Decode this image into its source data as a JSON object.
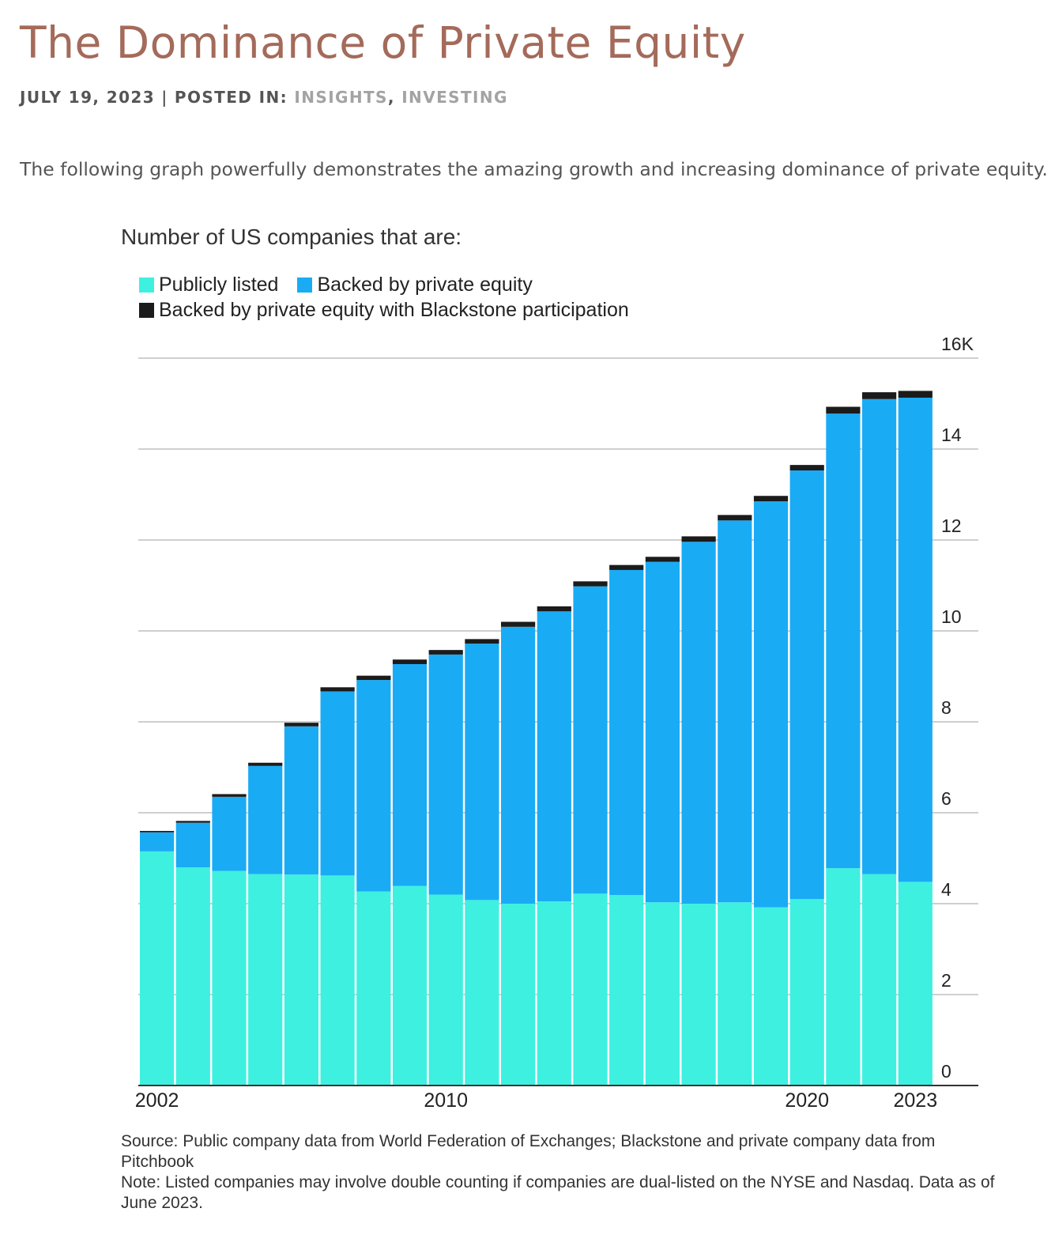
{
  "article": {
    "title": "The Dominance of Private Equity",
    "date": "JULY 19, 2023",
    "separator": "|",
    "posted_in_label": "POSTED IN:",
    "categories": [
      "INSIGHTS",
      "INVESTING"
    ],
    "category_separator": ",",
    "intro": "The following graph powerfully demonstrates the amazing growth and increasing dominance of private equity."
  },
  "colors": {
    "title": "#a46a5a",
    "public": "#3ef0e0",
    "pe": "#1aabf5",
    "blackstone": "#1b1b1b",
    "grid": "#cfcfcf"
  },
  "chart_data": {
    "type": "bar",
    "stacked": true,
    "title": "Number of US companies that are:",
    "legend": [
      "Publicly listed",
      "Backed by private equity",
      "Backed by private equity with Blackstone participation"
    ],
    "categories": [
      "2002",
      "2003",
      "2004",
      "2005",
      "2006",
      "2007",
      "2008",
      "2009",
      "2010",
      "2011",
      "2012",
      "2013",
      "2014",
      "2015",
      "2016",
      "2017",
      "2018",
      "2019",
      "2020",
      "2021",
      "2022",
      "2023"
    ],
    "x_tick_labels": [
      "2002",
      "2010",
      "2020",
      "2023"
    ],
    "y_ticks": [
      "0",
      "2",
      "4",
      "6",
      "8",
      "10",
      "12",
      "14",
      "16K"
    ],
    "ylim": [
      0,
      16000
    ],
    "series": [
      {
        "name": "Publicly listed",
        "values": [
          5150,
          4800,
          4720,
          4650,
          4640,
          4620,
          4270,
          4390,
          4200,
          4080,
          4000,
          4050,
          4220,
          4190,
          4030,
          4000,
          4030,
          3920,
          4100,
          4780,
          4650,
          4480
        ]
      },
      {
        "name": "Backed by private equity",
        "values": [
          420,
          980,
          1630,
          2380,
          3260,
          4050,
          4650,
          4880,
          5280,
          5640,
          6090,
          6380,
          6760,
          7150,
          7490,
          7960,
          8400,
          8930,
          9430,
          10000,
          10450,
          10650
        ]
      },
      {
        "name": "Backed by private equity with Blackstone participation",
        "values": [
          30,
          40,
          60,
          70,
          80,
          90,
          95,
          100,
          100,
          100,
          110,
          110,
          110,
          110,
          110,
          120,
          120,
          120,
          120,
          150,
          150,
          150
        ]
      }
    ],
    "source_note": "Source: Public company data from World Federation of Exchanges; Blackstone and private company data from Pitchbook",
    "note": "Note: Listed companies may involve double counting if companies are dual-listed on the NYSE and Nasdaq. Data as of June 2023."
  }
}
